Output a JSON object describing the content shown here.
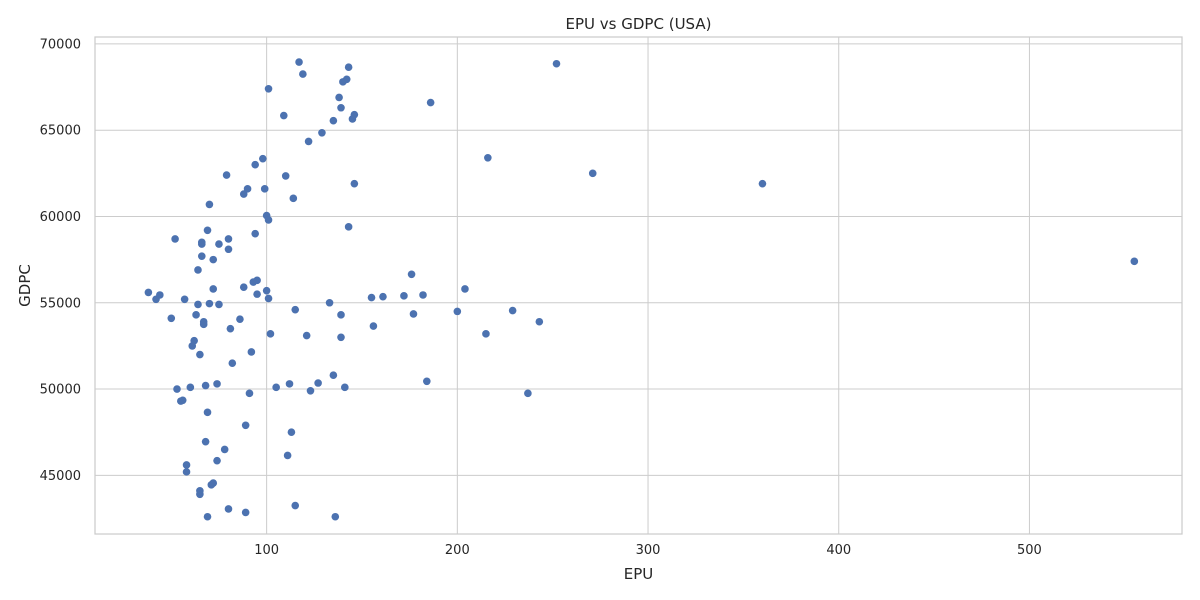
{
  "chart_data": {
    "type": "scatter",
    "title": "EPU vs GDPC (USA)",
    "xlabel": "EPU",
    "ylabel": "GDPC",
    "xlim": [
      10,
      580
    ],
    "ylim": [
      41600,
      70400
    ],
    "xticks": [
      100,
      200,
      300,
      400,
      500
    ],
    "yticks": [
      45000,
      50000,
      55000,
      60000,
      65000,
      70000
    ],
    "grid": true,
    "point_color": "#4c72b0",
    "points": [
      [
        38,
        55600
      ],
      [
        42,
        55200
      ],
      [
        44,
        55450
      ],
      [
        50,
        54100
      ],
      [
        52,
        58700
      ],
      [
        53,
        50000
      ],
      [
        55,
        49300
      ],
      [
        56,
        49350
      ],
      [
        57,
        55200
      ],
      [
        58,
        45600
      ],
      [
        58,
        45200
      ],
      [
        60,
        50100
      ],
      [
        61,
        52500
      ],
      [
        62,
        52800
      ],
      [
        63,
        54300
      ],
      [
        64,
        54900
      ],
      [
        64,
        56900
      ],
      [
        65,
        52000
      ],
      [
        65,
        44100
      ],
      [
        65,
        43900
      ],
      [
        66,
        58500
      ],
      [
        66,
        58400
      ],
      [
        66,
        57700
      ],
      [
        67,
        53900
      ],
      [
        67,
        53750
      ],
      [
        68,
        50200
      ],
      [
        68,
        46950
      ],
      [
        69,
        59200
      ],
      [
        69,
        48650
      ],
      [
        69,
        42600
      ],
      [
        70,
        54950
      ],
      [
        70,
        60700
      ],
      [
        71,
        44450
      ],
      [
        72,
        44550
      ],
      [
        72,
        57500
      ],
      [
        72,
        55800
      ],
      [
        74,
        45850
      ],
      [
        74,
        50300
      ],
      [
        75,
        54900
      ],
      [
        75,
        58400
      ],
      [
        78,
        46500
      ],
      [
        79,
        62400
      ],
      [
        80,
        58700
      ],
      [
        80,
        58100
      ],
      [
        80,
        43050
      ],
      [
        81,
        53500
      ],
      [
        82,
        51500
      ],
      [
        86,
        54050
      ],
      [
        88,
        61300
      ],
      [
        88,
        55900
      ],
      [
        89,
        47900
      ],
      [
        89,
        42850
      ],
      [
        90,
        61600
      ],
      [
        91,
        49750
      ],
      [
        92,
        52150
      ],
      [
        93,
        56200
      ],
      [
        94,
        59000
      ],
      [
        94,
        63000
      ],
      [
        95,
        55500
      ],
      [
        95,
        56300
      ],
      [
        98,
        63350
      ],
      [
        99,
        61600
      ],
      [
        100,
        60050
      ],
      [
        100,
        55700
      ],
      [
        101,
        55250
      ],
      [
        101,
        59800
      ],
      [
        101,
        67400
      ],
      [
        102,
        53200
      ],
      [
        105,
        50100
      ],
      [
        109,
        65850
      ],
      [
        110,
        62350
      ],
      [
        111,
        46150
      ],
      [
        112,
        50300
      ],
      [
        113,
        47500
      ],
      [
        114,
        61050
      ],
      [
        115,
        54600
      ],
      [
        115,
        43250
      ],
      [
        117,
        68950
      ],
      [
        119,
        68250
      ],
      [
        121,
        53100
      ],
      [
        122,
        64350
      ],
      [
        123,
        49900
      ],
      [
        127,
        50350
      ],
      [
        129,
        64850
      ],
      [
        133,
        55000
      ],
      [
        135,
        50800
      ],
      [
        135,
        65550
      ],
      [
        136,
        42600
      ],
      [
        138,
        66900
      ],
      [
        139,
        54300
      ],
      [
        139,
        53000
      ],
      [
        139,
        66300
      ],
      [
        140,
        67800
      ],
      [
        141,
        50100
      ],
      [
        142,
        67950
      ],
      [
        143,
        68650
      ],
      [
        143,
        59400
      ],
      [
        145,
        65650
      ],
      [
        146,
        65900
      ],
      [
        146,
        61900
      ],
      [
        155,
        55300
      ],
      [
        156,
        53650
      ],
      [
        161,
        55350
      ],
      [
        172,
        55400
      ],
      [
        176,
        56650
      ],
      [
        177,
        54350
      ],
      [
        182,
        55450
      ],
      [
        184,
        50450
      ],
      [
        186,
        66600
      ],
      [
        200,
        54500
      ],
      [
        204,
        55800
      ],
      [
        215,
        53200
      ],
      [
        216,
        63400
      ],
      [
        229,
        54550
      ],
      [
        237,
        49750
      ],
      [
        243,
        53900
      ],
      [
        252,
        68850
      ],
      [
        271,
        62500
      ],
      [
        360,
        61900
      ],
      [
        555,
        57400
      ]
    ]
  }
}
